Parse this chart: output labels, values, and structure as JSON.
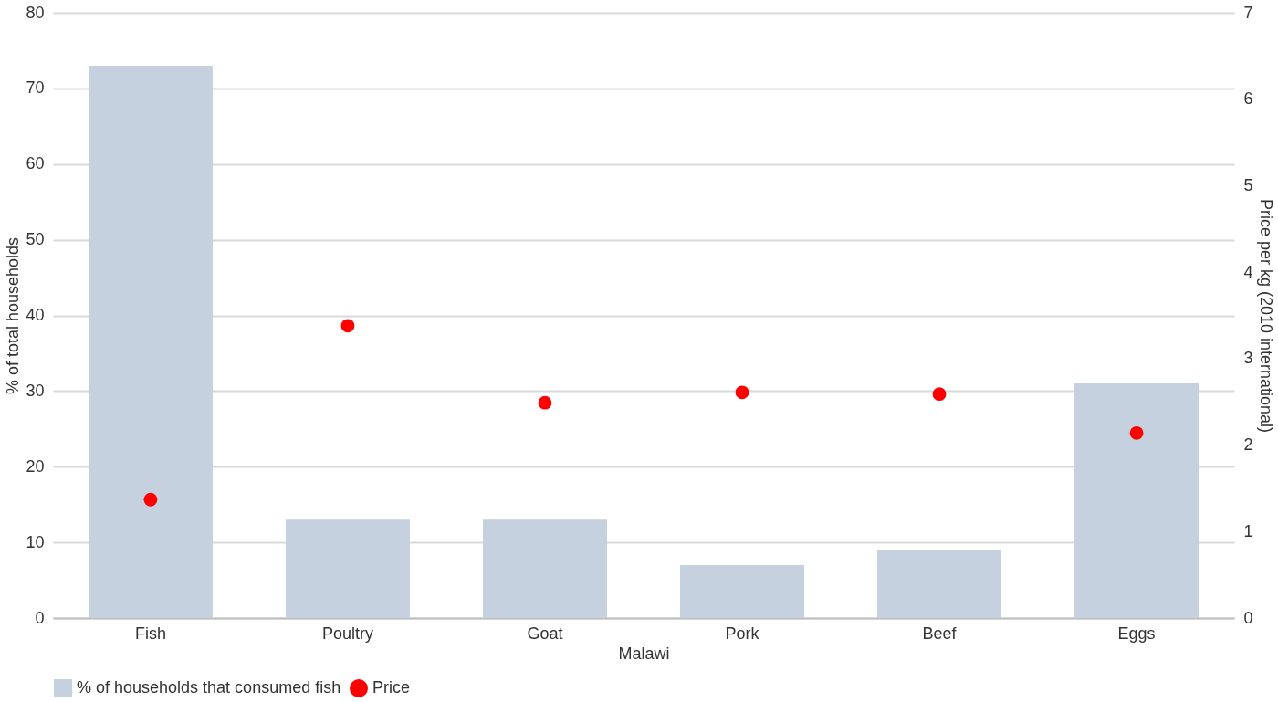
{
  "chart_data": {
    "type": "bar",
    "xlabel": "Malawi",
    "ylabel": "% of total households",
    "y2label": "Price per kg (2010 international)",
    "categories": [
      "Fish",
      "Poultry",
      "Goat",
      "Pork",
      "Beef",
      "Eggs"
    ],
    "series": [
      {
        "name": "% of households that consumed fish",
        "color": "#c5d1de",
        "values": [
          73,
          13,
          13,
          7,
          9,
          31
        ]
      },
      {
        "name": "Price",
        "type": "scatter",
        "axis": "y2",
        "color": "#ff0000",
        "marker": "circle",
        "values": [
          1.37,
          3.38,
          2.49,
          2.61,
          2.59,
          2.14
        ]
      }
    ],
    "ylim": [
      0,
      80
    ],
    "yticks": [
      0,
      10,
      20,
      30,
      40,
      50,
      60,
      70,
      80
    ],
    "y2lim": [
      0,
      7
    ],
    "y2ticks": [
      0,
      1,
      2,
      3,
      4,
      5,
      6,
      7
    ],
    "grid": "y",
    "legend": "bottom"
  }
}
